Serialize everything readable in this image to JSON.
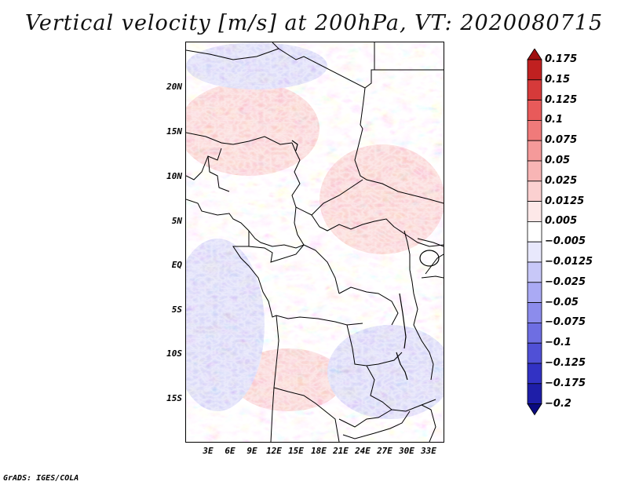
{
  "title": "Vertical velocity [m/s] at 200hPa, VT: 2020080715",
  "footer": "GrADS: IGES/COLA",
  "lat_labels": [
    "20N",
    "15N",
    "10N",
    "5N",
    "EQ",
    "5S",
    "10S",
    "15S"
  ],
  "lon_labels": [
    "3E",
    "6E",
    "9E",
    "12E",
    "15E",
    "18E",
    "21E",
    "24E",
    "27E",
    "30E",
    "33E"
  ],
  "colorbar": {
    "levels": [
      "0.175",
      "0.15",
      "0.125",
      "0.1",
      "0.075",
      "0.05",
      "0.025",
      "0.0125",
      "0.005",
      "-0.005",
      "-0.0125",
      "-0.025",
      "-0.05",
      "-0.075",
      "-0.1",
      "-0.125",
      "-0.175",
      "-0.2"
    ],
    "colors": [
      "#a01010",
      "#c02020",
      "#d63a3a",
      "#e85a5a",
      "#f07a7a",
      "#f59a9a",
      "#f8b5b5",
      "#fbd0d0",
      "#fde8e8",
      "#ffffff",
      "#e8e8fc",
      "#c8c8f8",
      "#aaaaf4",
      "#8c8cec",
      "#6e6ee2",
      "#5050d6",
      "#3232c4",
      "#1e1ea8",
      "#0a0a80"
    ]
  },
  "field": {
    "positive_color": "#f5a0a0",
    "negative_color": "#9a9af0",
    "neutral_color": "#ffffff"
  }
}
